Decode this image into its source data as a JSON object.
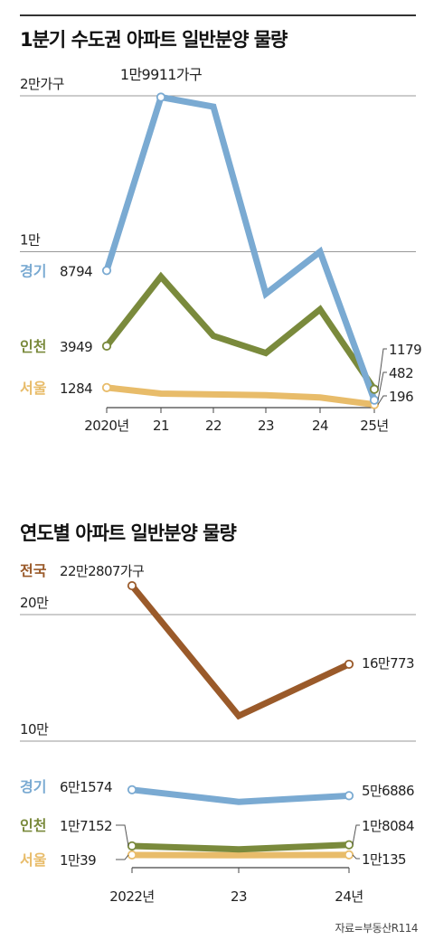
{
  "chart_data": [
    {
      "type": "line",
      "title": "1분기 수도권 아파트 일반분양 물량",
      "categories": [
        "2020년",
        "21",
        "22",
        "23",
        "24",
        "25년"
      ],
      "y_ticks": [
        {
          "value": 20000,
          "label": "2만가구"
        },
        {
          "value": 10000,
          "label": "1만"
        }
      ],
      "ylim": [
        0,
        20000
      ],
      "grid": true,
      "series": [
        {
          "name": "경기",
          "color": "#7aaad2",
          "values": [
            8794,
            19911,
            19300,
            7300,
            10000,
            482
          ],
          "start_label": "8794",
          "end_label": "482",
          "peak_label": "1만9911가구"
        },
        {
          "name": "인천",
          "color": "#7a8a3c",
          "values": [
            3949,
            8400,
            4600,
            3500,
            6300,
            1179
          ],
          "start_label": "3949",
          "end_label": "1179"
        },
        {
          "name": "서울",
          "color": "#e8bc6a",
          "values": [
            1284,
            900,
            850,
            800,
            650,
            196
          ],
          "start_label": "1284",
          "end_label": "196"
        }
      ]
    },
    {
      "type": "line",
      "title": "연도별 아파트 일반분양 물량",
      "categories": [
        "2022년",
        "23",
        "24년"
      ],
      "y_ticks": [
        {
          "value": 200000,
          "label": "20만"
        },
        {
          "value": 100000,
          "label": "10만"
        }
      ],
      "ylim": [
        0,
        200000
      ],
      "grid": true,
      "series": [
        {
          "name": "전국",
          "color": "#9a5a2a",
          "values": [
            222807,
            120000,
            160773
          ],
          "start_label": "22만2807가구",
          "end_label": "16만773"
        },
        {
          "name": "경기",
          "color": "#7aaad2",
          "values": [
            61574,
            52000,
            56886
          ],
          "start_label": "6만1574",
          "end_label": "5만6886"
        },
        {
          "name": "인천",
          "color": "#7a8a3c",
          "values": [
            17152,
            14500,
            18084
          ],
          "start_label": "1만7152",
          "end_label": "1만8084"
        },
        {
          "name": "서울",
          "color": "#e8bc6a",
          "values": [
            10039,
            9800,
            10135
          ],
          "start_label": "1만39",
          "end_label": "1만135"
        }
      ]
    }
  ],
  "source": "자료=부동산R114"
}
